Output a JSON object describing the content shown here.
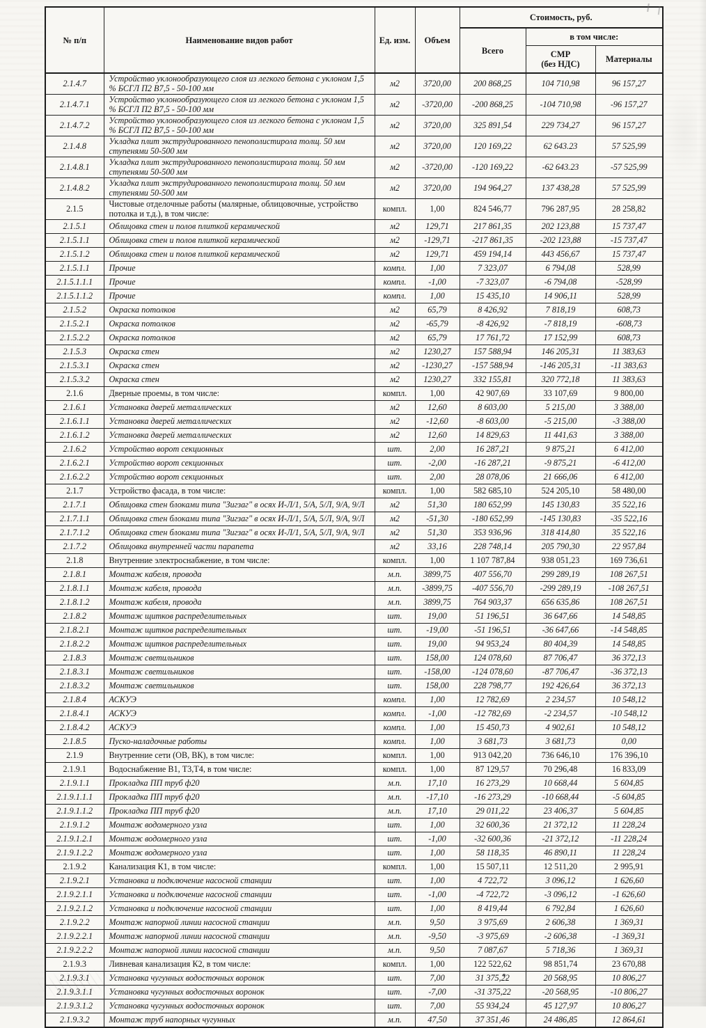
{
  "table": {
    "header": {
      "col_num": "№ п/п",
      "col_name": "Наименование видов работ",
      "col_unit": "Ед. изм.",
      "col_volume": "Объем",
      "cost_group": "Стоимость, руб.",
      "col_total": "Всего",
      "including": "в том числе:",
      "col_smr_line1": "СМР",
      "col_smr_line2": "(без НДС)",
      "col_materials": "Материалы"
    },
    "rows": [
      {
        "num": "2.1.4.7",
        "name": "Устройство уклонообразующего слоя из легкого бетона с уклоном 1,5 % БСГЛ П2 В7,5 - 50-100 мм",
        "unit": "м2",
        "volume": "3720,00",
        "total": "200 868,25",
        "smr": "104 710,98",
        "materials": "96 157,27",
        "section": false
      },
      {
        "num": "2.1.4.7.1",
        "name": "Устройство уклонообразующего слоя из легкого бетона с уклоном 1,5 % БСГЛ П2 В7,5 - 50-100 мм",
        "unit": "м2",
        "volume": "-3720,00",
        "total": "-200 868,25",
        "smr": "-104 710,98",
        "materials": "-96 157,27",
        "section": false
      },
      {
        "num": "2.1.4.7.2",
        "name": "Устройство уклонообразующего слоя из легкого бетона с уклоном 1,5 % БСГЛ П2 В7,5 - 50-100 мм",
        "unit": "м2",
        "volume": "3720,00",
        "total": "325 891,54",
        "smr": "229 734,27",
        "materials": "96 157,27",
        "section": false
      },
      {
        "num": "2.1.4.8",
        "name": "Укладка плит экструдированного пенополистирола толщ. 50 мм ступенями 50-500 мм",
        "unit": "м2",
        "volume": "3720,00",
        "total": "120 169,22",
        "smr": "62 643.23",
        "materials": "57 525,99",
        "section": false
      },
      {
        "num": "2.1.4.8.1",
        "name": "Укладка плит экструдированного пенополистирола толщ. 50 мм ступенями 50-500 мм",
        "unit": "м2",
        "volume": "-3720,00",
        "total": "-120 169,22",
        "smr": "-62 643.23",
        "materials": "-57 525,99",
        "section": false
      },
      {
        "num": "2.1.4.8.2",
        "name": "Укладка плит экструдированного пенополистирола толщ. 50 мм ступенями 50-500 мм",
        "unit": "м2",
        "volume": "3720,00",
        "total": "194 964,27",
        "smr": "137 438,28",
        "materials": "57 525,99",
        "section": false
      },
      {
        "num": "2.1.5",
        "name": "Чистовые отделочные работы (малярные, облицовочные, устройство потолка и т.д.), в том числе:",
        "unit": "компл.",
        "volume": "1,00",
        "total": "824 546,77",
        "smr": "796 287,95",
        "materials": "28 258,82",
        "section": true
      },
      {
        "num": "2.1.5.1",
        "name": "Облицовка стен и полов плиткой керамической",
        "unit": "м2",
        "volume": "129,71",
        "total": "217 861,35",
        "smr": "202 123,88",
        "materials": "15 737,47",
        "section": false
      },
      {
        "num": "2.1.5.1.1",
        "name": "Облицовка стен и полов плиткой керамической",
        "unit": "м2",
        "volume": "-129,71",
        "total": "-217 861,35",
        "smr": "-202 123,88",
        "materials": "-15 737,47",
        "section": false
      },
      {
        "num": "2.1.5.1.2",
        "name": "Облицовка стен и полов плиткой керамической",
        "unit": "м2",
        "volume": "129,71",
        "total": "459 194,14",
        "smr": "443 456,67",
        "materials": "15 737,47",
        "section": false
      },
      {
        "num": "2.1.5.1.1",
        "name": "Прочие",
        "unit": "компл.",
        "volume": "1,00",
        "total": "7 323,07",
        "smr": "6 794,08",
        "materials": "528,99",
        "section": false
      },
      {
        "num": "2.1.5.1.1.1",
        "name": "Прочие",
        "unit": "компл.",
        "volume": "-1,00",
        "total": "-7 323,07",
        "smr": "-6 794,08",
        "materials": "-528,99",
        "section": false
      },
      {
        "num": "2.1.5.1.1.2",
        "name": "Прочие",
        "unit": "компл.",
        "volume": "1,00",
        "total": "15 435,10",
        "smr": "14 906,11",
        "materials": "528,99",
        "section": false
      },
      {
        "num": "2.1.5.2",
        "name": "Окраска потолков",
        "unit": "м2",
        "volume": "65,79",
        "total": "8 426,92",
        "smr": "7 818,19",
        "materials": "608,73",
        "section": false
      },
      {
        "num": "2.1.5.2.1",
        "name": "Окраска потолков",
        "unit": "м2",
        "volume": "-65,79",
        "total": "-8 426,92",
        "smr": "-7 818,19",
        "materials": "-608,73",
        "section": false
      },
      {
        "num": "2.1.5.2.2",
        "name": "Окраска потолков",
        "unit": "м2",
        "volume": "65,79",
        "total": "17 761,72",
        "smr": "17 152,99",
        "materials": "608,73",
        "section": false
      },
      {
        "num": "2.1.5.3",
        "name": "Окраска стен",
        "unit": "м2",
        "volume": "1230,27",
        "total": "157 588,94",
        "smr": "146 205,31",
        "materials": "11 383,63",
        "section": false
      },
      {
        "num": "2.1.5.3.1",
        "name": "Окраска стен",
        "unit": "м2",
        "volume": "-1230,27",
        "total": "-157 588,94",
        "smr": "-146 205,31",
        "materials": "-11 383,63",
        "section": false
      },
      {
        "num": "2.1.5.3.2",
        "name": "Окраска стен",
        "unit": "м2",
        "volume": "1230,27",
        "total": "332 155,81",
        "smr": "320 772,18",
        "materials": "11 383,63",
        "section": false
      },
      {
        "num": "2.1.6",
        "name": "Дверные проемы, в том числе:",
        "unit": "компл.",
        "volume": "1,00",
        "total": "42 907,69",
        "smr": "33 107,69",
        "materials": "9 800,00",
        "section": true
      },
      {
        "num": "2.1.6.1",
        "name": "Установка дверей металлических",
        "unit": "м2",
        "volume": "12,60",
        "total": "8 603,00",
        "smr": "5 215,00",
        "materials": "3 388,00",
        "section": false
      },
      {
        "num": "2.1.6.1.1",
        "name": "Установка дверей металлических",
        "unit": "м2",
        "volume": "-12,60",
        "total": "-8 603,00",
        "smr": "-5 215,00",
        "materials": "-3 388,00",
        "section": false
      },
      {
        "num": "2.1.6.1.2",
        "name": "Установка дверей металлических",
        "unit": "м2",
        "volume": "12,60",
        "total": "14 829,63",
        "smr": "11 441,63",
        "materials": "3 388,00",
        "section": false
      },
      {
        "num": "2.1.6.2",
        "name": "Устройство ворот секционных",
        "unit": "шт.",
        "volume": "2,00",
        "total": "16 287,21",
        "smr": "9 875,21",
        "materials": "6 412,00",
        "section": false
      },
      {
        "num": "2.1.6.2.1",
        "name": "Устройство ворот секционных",
        "unit": "шт.",
        "volume": "-2,00",
        "total": "-16 287,21",
        "smr": "-9 875,21",
        "materials": "-6 412,00",
        "section": false
      },
      {
        "num": "2.1.6.2.2",
        "name": "Устройство ворот секционных",
        "unit": "шт.",
        "volume": "2,00",
        "total": "28 078,06",
        "smr": "21 666,06",
        "materials": "6 412,00",
        "section": false
      },
      {
        "num": "2.1.7",
        "name": "Устройство фасада, в том числе:",
        "unit": "компл.",
        "volume": "1,00",
        "total": "582 685,10",
        "smr": "524 205,10",
        "materials": "58 480,00",
        "section": true
      },
      {
        "num": "2.1.7.1",
        "name": "Облицовка стен блоками типа \"Зигзаг\" в осях И-Л/1, 5/А, 5/Л, 9/А, 9/Л",
        "unit": "м2",
        "volume": "51,30",
        "total": "180 652,99",
        "smr": "145 130,83",
        "materials": "35 522,16",
        "section": false
      },
      {
        "num": "2.1.7.1.1",
        "name": "Облицовка стен блоками типа \"Зигзаг\" в осях И-Л/1, 5/А, 5/Л, 9/А, 9/Л",
        "unit": "м2",
        "volume": "-51,30",
        "total": "-180 652,99",
        "smr": "-145 130,83",
        "materials": "-35 522,16",
        "section": false
      },
      {
        "num": "2.1.7.1.2",
        "name": "Облицовка стен блоками типа \"Зигзаг\" в осях И-Л/1, 5/А, 5/Л, 9/А, 9/Л",
        "unit": "м2",
        "volume": "51,30",
        "total": "353 936,96",
        "smr": "318 414,80",
        "materials": "35 522,16",
        "section": false
      },
      {
        "num": "2.1.7.2",
        "name": "Облицовка внутренней части парапета",
        "unit": "м2",
        "volume": "33,16",
        "total": "228 748,14",
        "smr": "205 790,30",
        "materials": "22 957,84",
        "section": false
      },
      {
        "num": "2.1.8",
        "name": "Внутренние электроснабжение, в том числе:",
        "unit": "компл.",
        "volume": "1,00",
        "total": "1 107 787,84",
        "smr": "938 051,23",
        "materials": "169 736,61",
        "section": true
      },
      {
        "num": "2.1.8.1",
        "name": "Монтаж кабеля, провода",
        "unit": "м.п.",
        "volume": "3899,75",
        "total": "407 556,70",
        "smr": "299 289,19",
        "materials": "108 267,51",
        "section": false
      },
      {
        "num": "2.1.8.1.1",
        "name": "Монтаж кабеля, провода",
        "unit": "м.п.",
        "volume": "-3899,75",
        "total": "-407 556,70",
        "smr": "-299 289,19",
        "materials": "-108 267,51",
        "section": false
      },
      {
        "num": "2.1.8.1.2",
        "name": "Монтаж кабеля, провода",
        "unit": "м.п.",
        "volume": "3899,75",
        "total": "764 903,37",
        "smr": "656 635,86",
        "materials": "108 267,51",
        "section": false
      },
      {
        "num": "2.1.8.2",
        "name": "Монтаж щитков распределительных",
        "unit": "шт.",
        "volume": "19,00",
        "total": "51 196,51",
        "smr": "36 647,66",
        "materials": "14 548,85",
        "section": false
      },
      {
        "num": "2.1.8.2.1",
        "name": "Монтаж щитков распределительных",
        "unit": "шт.",
        "volume": "-19,00",
        "total": "-51 196,51",
        "smr": "-36 647,66",
        "materials": "-14 548,85",
        "section": false
      },
      {
        "num": "2.1.8.2.2",
        "name": "Монтаж щитков распределительных",
        "unit": "шт.",
        "volume": "19,00",
        "total": "94 953,24",
        "smr": "80 404,39",
        "materials": "14 548,85",
        "section": false
      },
      {
        "num": "2.1.8.3",
        "name": "Монтаж светильников",
        "unit": "шт.",
        "volume": "158,00",
        "total": "124 078,60",
        "smr": "87 706,47",
        "materials": "36 372,13",
        "section": false
      },
      {
        "num": "2.1.8.3.1",
        "name": "Монтаж светильников",
        "unit": "шт.",
        "volume": "-158,00",
        "total": "-124 078,60",
        "smr": "-87 706,47",
        "materials": "-36 372,13",
        "section": false
      },
      {
        "num": "2.1.8.3.2",
        "name": "Монтаж светильников",
        "unit": "шт.",
        "volume": "158,00",
        "total": "228 798,77",
        "smr": "192 426,64",
        "materials": "36 372,13",
        "section": false
      },
      {
        "num": "2.1.8.4",
        "name": "АСКУЭ",
        "unit": "компл.",
        "volume": "1,00",
        "total": "12 782,69",
        "smr": "2 234,57",
        "materials": "10 548,12",
        "section": false
      },
      {
        "num": "2.1.8.4.1",
        "name": "АСКУЭ",
        "unit": "компл.",
        "volume": "-1,00",
        "total": "-12 782,69",
        "smr": "-2 234,57",
        "materials": "-10 548,12",
        "section": false
      },
      {
        "num": "2.1.8.4.2",
        "name": "АСКУЭ",
        "unit": "компл.",
        "volume": "1,00",
        "total": "15 450,73",
        "smr": "4 902,61",
        "materials": "10 548,12",
        "section": false
      },
      {
        "num": "2.1.8.5",
        "name": "Пуско-наладочные работы",
        "unit": "компл.",
        "volume": "1,00",
        "total": "3 681,73",
        "smr": "3 681,73",
        "materials": "0,00",
        "section": false
      },
      {
        "num": "2.1.9",
        "name": "Внутренние сети (ОВ, ВК), в том числе:",
        "unit": "компл.",
        "volume": "1,00",
        "total": "913 042,20",
        "smr": "736 646,10",
        "materials": "176 396,10",
        "section": true
      },
      {
        "num": "2.1.9.1",
        "name": "Водоснабжение В1, Т3,Т4, в том числе:",
        "unit": "компл.",
        "volume": "1,00",
        "total": "87 129,57",
        "smr": "70 296,48",
        "materials": "16 833,09",
        "section": true
      },
      {
        "num": "2.1.9.1.1",
        "name": "Прокладка ПП труб ф20",
        "unit": "м.п.",
        "volume": "17,10",
        "total": "16 273,29",
        "smr": "10 668,44",
        "materials": "5 604,85",
        "section": false
      },
      {
        "num": "2.1.9.1.1.1",
        "name": "Прокладка ПП труб ф20",
        "unit": "м.п.",
        "volume": "-17,10",
        "total": "-16 273,29",
        "smr": "-10 668,44",
        "materials": "-5 604,85",
        "section": false
      },
      {
        "num": "2.1.9.1.1.2",
        "name": "Прокладка ПП труб ф20",
        "unit": "м.п.",
        "volume": "17,10",
        "total": "29 011,22",
        "smr": "23 406,37",
        "materials": "5 604,85",
        "section": false
      },
      {
        "num": "2.1.9.1.2",
        "name": "Монтаж водомерного узла",
        "unit": "шт.",
        "volume": "1,00",
        "total": "32 600,36",
        "smr": "21 372,12",
        "materials": "11 228,24",
        "section": false
      },
      {
        "num": "2.1.9.1.2.1",
        "name": "Монтаж водомерного узла",
        "unit": "шт.",
        "volume": "-1,00",
        "total": "-32 600,36",
        "smr": "-21 372,12",
        "materials": "-11 228,24",
        "section": false
      },
      {
        "num": "2.1.9.1.2.2",
        "name": "Монтаж водомерного узла",
        "unit": "шт.",
        "volume": "1,00",
        "total": "58 118,35",
        "smr": "46 890,11",
        "materials": "11 228,24",
        "section": false
      },
      {
        "num": "2.1.9.2",
        "name": "Канализация К1, в том числе:",
        "unit": "компл.",
        "volume": "1,00",
        "total": "15 507,11",
        "smr": "12 511,20",
        "materials": "2 995,91",
        "section": true
      },
      {
        "num": "2.1.9.2.1",
        "name": "Установка и подключение насосной станции",
        "unit": "шт.",
        "volume": "1,00",
        "total": "4 722,72",
        "smr": "3 096,12",
        "materials": "1 626,60",
        "section": false
      },
      {
        "num": "2.1.9.2.1.1",
        "name": "Установка и подключение насосной станции",
        "unit": "шт.",
        "volume": "-1,00",
        "total": "-4 722,72",
        "smr": "-3 096,12",
        "materials": "-1 626,60",
        "section": false
      },
      {
        "num": "2.1.9.2.1.2",
        "name": "Установка и подключение насосной станции",
        "unit": "шт.",
        "volume": "1,00",
        "total": "8 419,44",
        "smr": "6 792,84",
        "materials": "1 626,60",
        "section": false
      },
      {
        "num": "2.1.9.2.2",
        "name": "Монтаж напорной линии насосной станции",
        "unit": "м.п.",
        "volume": "9,50",
        "total": "3 975,69",
        "smr": "2 606,38",
        "materials": "1 369,31",
        "section": false
      },
      {
        "num": "2.1.9.2.2.1",
        "name": "Монтаж напорной линии насосной станции",
        "unit": "м.п.",
        "volume": "-9,50",
        "total": "-3 975,69",
        "smr": "-2 606,38",
        "materials": "-1 369,31",
        "section": false
      },
      {
        "num": "2.1.9.2.2.2",
        "name": "Монтаж напорной линии насосной станции",
        "unit": "м.п.",
        "volume": "9,50",
        "total": "7 087,67",
        "smr": "5 718,36",
        "materials": "1 369,31",
        "section": false
      },
      {
        "num": "2.1.9.3",
        "name": "Ливневая канализация К2, в том числе:",
        "unit": "компл.",
        "volume": "1,00",
        "total": "122 522,62",
        "smr": "98 851,74",
        "materials": "23 670,88",
        "section": true
      },
      {
        "num": "2.1.9.3.1",
        "name": "Установка чугунных водосточных воронок",
        "unit": "шт.",
        "volume": "7,00",
        "total": "31 375,22",
        "smr": "20 568,95",
        "materials": "10 806,27",
        "section": false
      },
      {
        "num": "2.1.9.3.1.1",
        "name": "Установка чугунных водосточных воронок",
        "unit": "шт.",
        "volume": "-7,00",
        "total": "-31 375,22",
        "smr": "-20 568,95",
        "materials": "-10 806,27",
        "section": false
      },
      {
        "num": "2.1.9.3.1.2",
        "name": "Установка чугунных водосточных воронок",
        "unit": "шт.",
        "volume": "7,00",
        "total": "55 934,24",
        "smr": "45 127,97",
        "materials": "10 806,27",
        "section": false
      },
      {
        "num": "2.1.9.3.2",
        "name": "Монтаж труб напорных чугунных",
        "unit": "м.п.",
        "volume": "47,50",
        "total": "37 351,46",
        "smr": "24 486,85",
        "materials": "12 864,61",
        "section": false
      }
    ]
  }
}
